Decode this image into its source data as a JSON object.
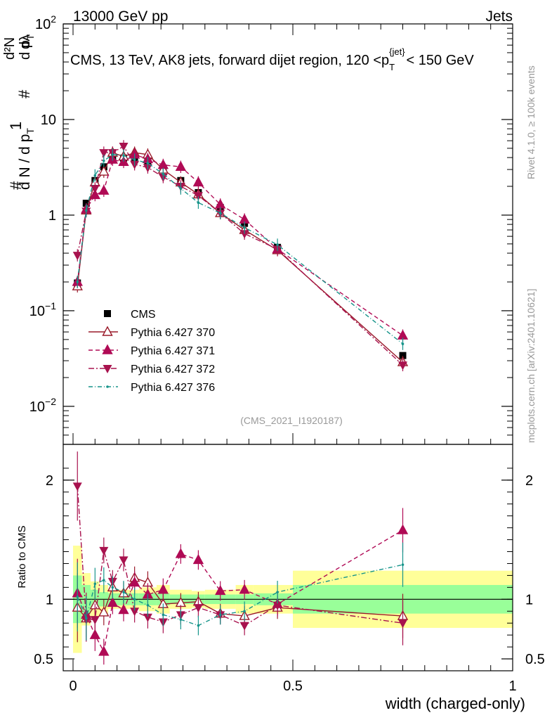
{
  "header": {
    "left": "13000 GeV pp",
    "right": "Jets"
  },
  "plot_title": "CMS, 13 TeV, AK8 jets, forward dijet region, 120 <p",
  "plot_title_sub": "T",
  "plot_title_sup": "{jet}",
  "plot_title_end": "< 150 GeV",
  "side_label_top": "Rivet 4.1.0, ≥ 100k events",
  "side_label_bottom": "mcplots.cern.ch [arXiv:2401.10621]",
  "analysis_id": "(CMS_2021_I1920187)",
  "y_label_main": {
    "hash1": "#",
    "one": "1",
    "dN": "d N / d p",
    "dN_sub": "T",
    "hash2": "#",
    "d2N": "d²N",
    "dpT": "d p",
    "dpT_sub": "T",
    "dlambda": "dλ"
  },
  "ratio_ylabel": "Ratio to CMS",
  "colors": {
    "cms": "#000000",
    "p370": "#9a1a2a",
    "p371": "#b00a55",
    "p372": "#a8124e",
    "p376": "#16948a",
    "band_green": "#99ff99",
    "band_yellow": "#ffff99"
  },
  "chart_data": {
    "type": "line",
    "xlabel": "width (charged-only)",
    "ylabel": "1/N dN/dλ",
    "x_range": [
      0.0,
      1.0
    ],
    "ylim_main": [
      0.004,
      100
    ],
    "yscale_main": "log",
    "ylim_ratio": [
      0.4,
      2.3
    ],
    "x_ticks": [
      {
        "value": 0,
        "label": "0"
      },
      {
        "value": 0.5,
        "label": "0.5"
      },
      {
        "value": 1,
        "label": "1"
      }
    ],
    "y_ticks_main": [
      {
        "value": 0.01,
        "base": "10",
        "exp": "−2"
      },
      {
        "value": 0.1,
        "base": "10",
        "exp": "−1"
      },
      {
        "value": 1,
        "base": "1",
        "exp": ""
      },
      {
        "value": 10,
        "base": "10",
        "exp": ""
      },
      {
        "value": 100,
        "base": "10",
        "exp": "2"
      }
    ],
    "y_ticks_ratio": [
      {
        "value": 0.5,
        "label": "0.5"
      },
      {
        "value": 1,
        "label": "1"
      },
      {
        "value": 2,
        "label": "2"
      }
    ],
    "x": [
      0.01,
      0.03,
      0.05,
      0.07,
      0.09,
      0.115,
      0.14,
      0.17,
      0.205,
      0.245,
      0.285,
      0.335,
      0.39,
      0.465,
      0.75
    ],
    "bin_edges": [
      0,
      0.02,
      0.04,
      0.06,
      0.08,
      0.1,
      0.13,
      0.15,
      0.19,
      0.22,
      0.27,
      0.3,
      0.37,
      0.41,
      0.5,
      1.0
    ],
    "band_inner": [
      0.2,
      0.12,
      0.08,
      0.06,
      0.05,
      0.05,
      0.05,
      0.05,
      0.05,
      0.04,
      0.04,
      0.04,
      0.04,
      0.05,
      0.12
    ],
    "band_outer": [
      0.45,
      0.22,
      0.15,
      0.12,
      0.08,
      0.08,
      0.08,
      0.1,
      0.12,
      0.08,
      0.07,
      0.08,
      0.12,
      0.12,
      0.24
    ],
    "series": [
      {
        "name": "CMS",
        "key": "cms",
        "marker": "square",
        "values": [
          0.195,
          1.33,
          2.3,
          3.2,
          3.9,
          3.95,
          3.8,
          3.7,
          3.1,
          2.3,
          1.72,
          1.2,
          0.82,
          0.46,
          0.034
        ],
        "ratio": [
          1,
          1,
          1,
          1,
          1,
          1,
          1,
          1,
          1,
          1,
          1,
          1,
          1,
          1,
          1
        ]
      },
      {
        "name": "Pythia 6.427 370",
        "key": "p370",
        "marker": "triangle-up-open",
        "dash": "",
        "values": [
          0.18,
          1.12,
          2.2,
          2.85,
          4.5,
          4.1,
          4.5,
          4.3,
          3.0,
          2.2,
          1.65,
          1.05,
          0.7,
          0.43,
          0.029
        ],
        "ratio": [
          0.93,
          0.84,
          0.95,
          0.89,
          1.1,
          1.05,
          1.18,
          1.14,
          0.96,
          0.97,
          0.98,
          0.88,
          0.86,
          0.93,
          0.86
        ]
      },
      {
        "name": "Pythia 6.427 371",
        "key": "p371",
        "marker": "triangle-up",
        "dash": "6,4",
        "values": [
          0.2,
          1.15,
          1.62,
          1.8,
          3.8,
          3.6,
          4.3,
          3.85,
          3.35,
          3.2,
          2.2,
          1.29,
          0.9,
          0.44,
          0.055
        ],
        "ratio": [
          1.05,
          0.87,
          0.7,
          0.56,
          0.97,
          0.91,
          1.14,
          1.04,
          1.08,
          1.38,
          1.33,
          1.07,
          1.08,
          0.96,
          1.58
        ]
      },
      {
        "name": "Pythia 6.427 372",
        "key": "p372",
        "marker": "triangle-down",
        "dash": "8,3,2,3",
        "values": [
          0.38,
          1.1,
          1.9,
          4.5,
          4.5,
          5.25,
          3.4,
          3.15,
          2.5,
          2.0,
          1.6,
          1.05,
          0.64,
          0.44,
          0.027
        ],
        "ratio": [
          1.95,
          0.83,
          0.83,
          1.41,
          1.15,
          1.33,
          0.9,
          0.85,
          0.81,
          0.87,
          0.93,
          0.87,
          0.78,
          0.95,
          0.8
        ]
      },
      {
        "name": "Pythia 6.427 376",
        "key": "p376",
        "marker": "dot",
        "dash": "6,3,1,3",
        "values": [
          0.2,
          1.12,
          2.6,
          3.7,
          4.3,
          4.2,
          3.8,
          3.5,
          2.7,
          1.9,
          1.35,
          1.05,
          0.74,
          0.49,
          0.045
        ],
        "ratio": [
          1.02,
          0.84,
          1.13,
          1.16,
          1.1,
          1.06,
          1.0,
          0.95,
          0.87,
          0.83,
          0.78,
          0.87,
          0.9,
          1.06,
          1.29
        ]
      }
    ]
  }
}
